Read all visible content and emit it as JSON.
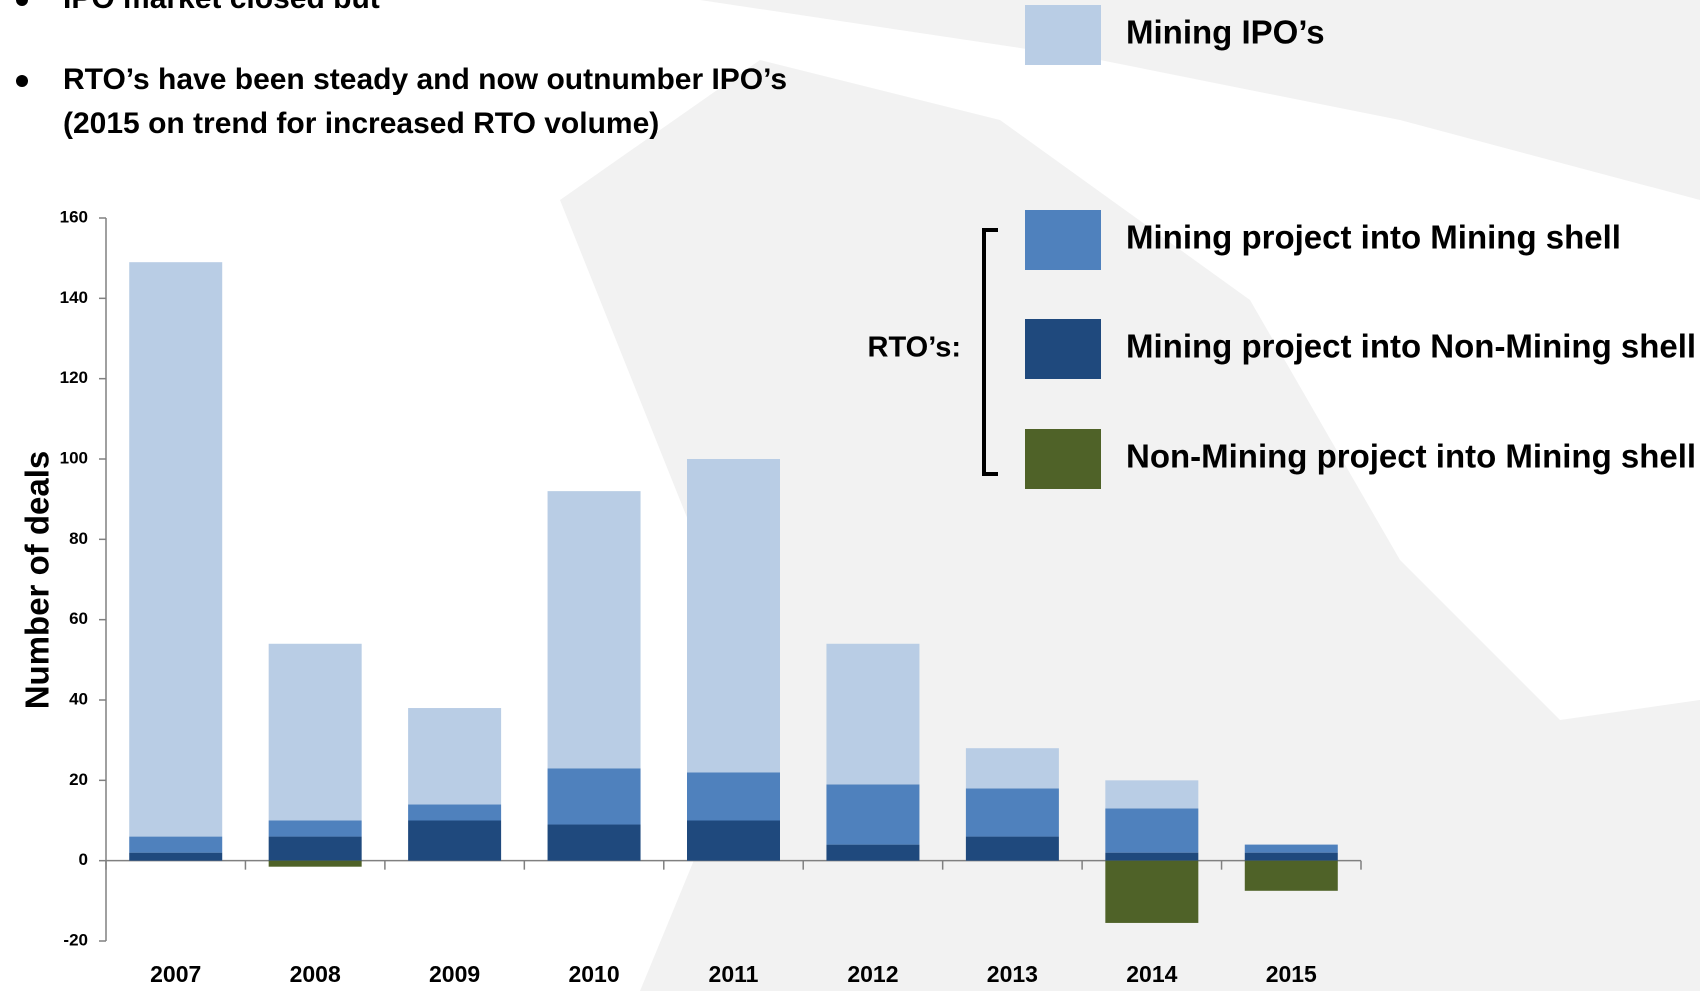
{
  "chart_data": {
    "type": "stacked_bar",
    "bullets": [
      [
        "IPO market closed but"
      ],
      [
        "RTO’s have been steady and now outnumber IPO’s",
        "(2015 on trend for increased RTO volume)"
      ]
    ],
    "y_label": "Number of deals",
    "legend_group_label": "RTO’s:",
    "categories": [
      "2007",
      "2008",
      "2009",
      "2010",
      "2011",
      "2012",
      "2013",
      "2014",
      "2015"
    ],
    "series": [
      {
        "name": "Mining project into Non-Mining shell",
        "color": "#1f497d",
        "values": [
          2,
          6,
          10,
          9,
          10,
          4,
          6,
          2,
          2
        ]
      },
      {
        "name": "Mining project into Mining shell",
        "color": "#4f81bd",
        "values": [
          4,
          4,
          4,
          14,
          12,
          15,
          12,
          11,
          2
        ]
      },
      {
        "name": "Mining IPO’s",
        "color": "#b9cde5",
        "values": [
          143,
          44,
          24,
          69,
          78,
          35,
          10,
          7,
          0
        ]
      },
      {
        "name": "Non-Mining project into Mining shell",
        "color": "#4f6228",
        "values": [
          0,
          -1.5,
          0,
          0,
          0,
          0,
          0,
          -15.5,
          -7.5
        ]
      }
    ],
    "ylim": [
      -20,
      160
    ],
    "yticks": [
      -20,
      0,
      20,
      40,
      60,
      80,
      100,
      120,
      140,
      160
    ]
  }
}
